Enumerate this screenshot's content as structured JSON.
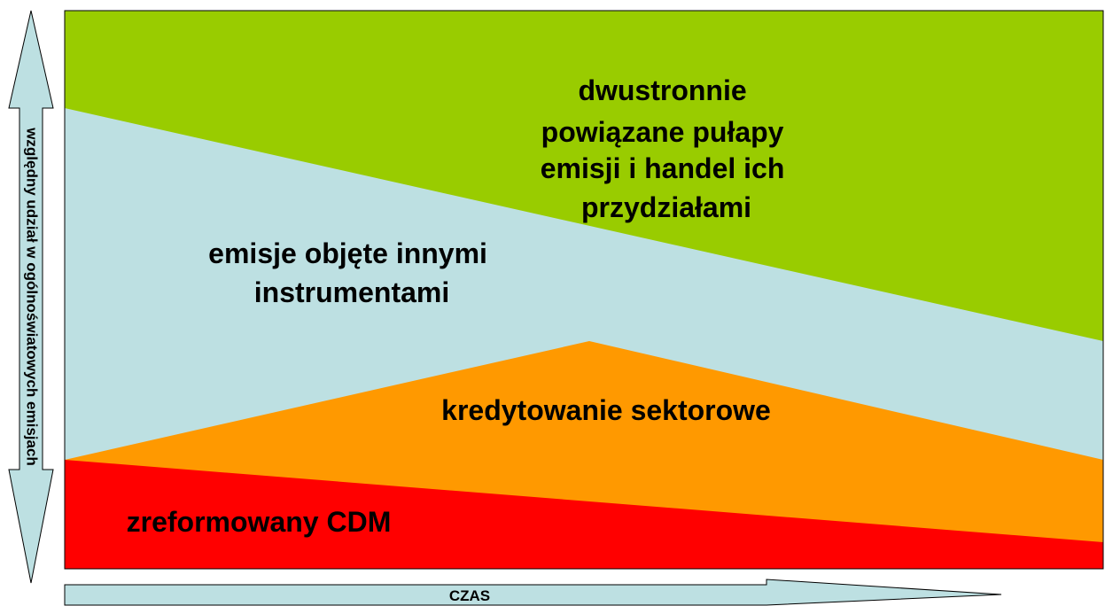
{
  "y_axis": {
    "label": "względny udział w ogólnoświatowych emisjach"
  },
  "x_axis": {
    "label": "CZAS"
  },
  "regions": [
    {
      "label": [
        "dwustronnie",
        "powiązane pułapy",
        "emisji i handel ich",
        "przydziałami"
      ]
    },
    {
      "label": [
        "emisje objęte innymi",
        "instrumentami"
      ]
    },
    {
      "label": [
        "kredytowanie sektorowe"
      ]
    },
    {
      "label": [
        "zreformowany CDM"
      ]
    }
  ]
}
